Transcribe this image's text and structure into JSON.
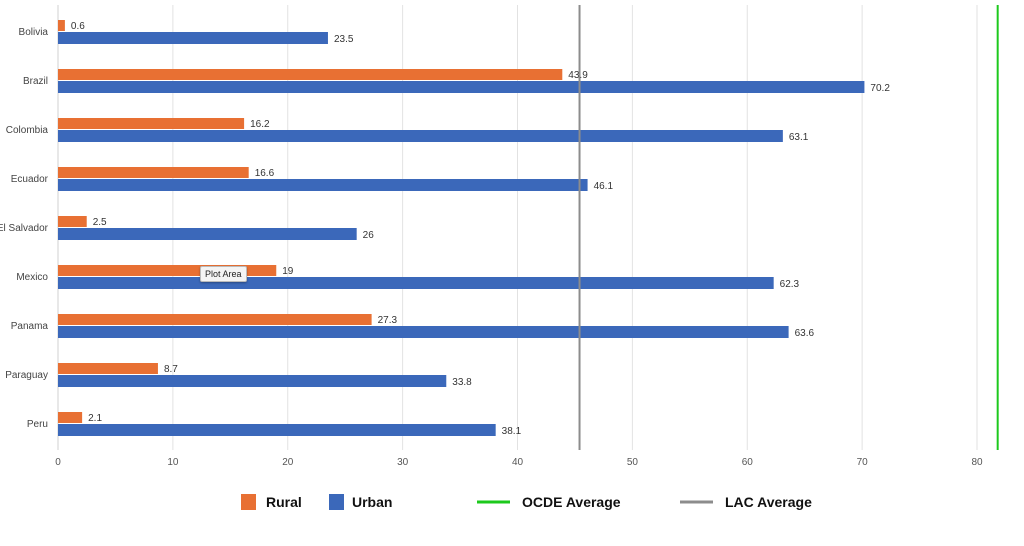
{
  "chart_data": {
    "type": "bar",
    "orientation": "horizontal",
    "categories": [
      "Bolivia",
      "Brazil",
      "Colombia",
      "Ecuador",
      "El Salvador",
      "Mexico",
      "Panama",
      "Paraguay",
      "Peru"
    ],
    "series": [
      {
        "name": "Rural",
        "color": "#E87033",
        "values": [
          0.6,
          43.9,
          16.2,
          16.6,
          2.5,
          19,
          27.3,
          8.7,
          2.1
        ]
      },
      {
        "name": "Urban",
        "color": "#3B68BA",
        "values": [
          23.5,
          70.2,
          63.1,
          46.1,
          26,
          62.3,
          63.6,
          33.8,
          38.1
        ]
      }
    ],
    "reference_lines": [
      {
        "name": "OCDE Average",
        "color": "#1DC91D",
        "value": 81.8
      },
      {
        "name": "LAC Average",
        "color": "#8C8C8C",
        "value": 45.4
      }
    ],
    "xlim": [
      0,
      80
    ],
    "xticks": [
      "0",
      "10",
      "20",
      "30",
      "40",
      "50",
      "60",
      "70",
      "80"
    ],
    "grid": true,
    "legend_position": "bottom"
  },
  "tooltip": "Plot Area"
}
